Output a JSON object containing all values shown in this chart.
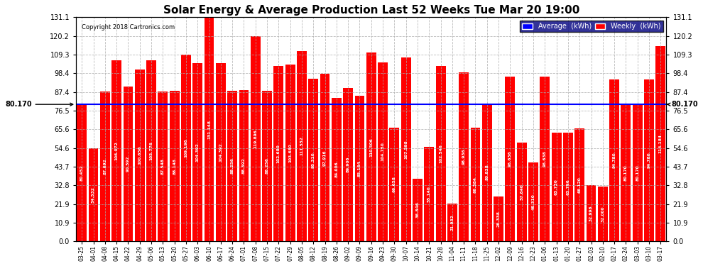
{
  "title": "Solar Energy & Average Production Last 52 Weeks Tue Mar 20 19:00",
  "copyright": "Copyright 2018 Cartronics.com",
  "average_value": 80.17,
  "average_label": "80.170",
  "bar_color": "#ff0000",
  "average_line_color": "#0000ff",
  "background_color": "#ffffff",
  "plot_bg_color": "#ffffff",
  "grid_color": "#aaaaaa",
  "ylim": [
    0,
    131.1
  ],
  "yticks": [
    0.0,
    10.9,
    21.9,
    32.8,
    43.7,
    54.6,
    65.6,
    76.5,
    87.4,
    98.4,
    109.3,
    120.2,
    131.1
  ],
  "dates": [
    "03-25",
    "04-01",
    "04-08",
    "04-15",
    "04-22",
    "04-29",
    "05-06",
    "05-13",
    "05-20",
    "05-27",
    "06-03",
    "06-10",
    "06-17",
    "06-24",
    "07-01",
    "07-08",
    "07-15",
    "07-22",
    "07-29",
    "08-05",
    "08-12",
    "08-19",
    "08-26",
    "09-02",
    "09-09",
    "09-16",
    "09-23",
    "09-30",
    "10-07",
    "10-14",
    "10-21",
    "10-28",
    "11-04",
    "11-11",
    "11-18",
    "11-25",
    "12-02",
    "12-09",
    "12-16",
    "12-23",
    "01-06",
    "01-13",
    "01-20",
    "01-27",
    "02-03",
    "02-10",
    "02-17",
    "02-24",
    "03-03",
    "03-10",
    "03-17"
  ],
  "values": [
    80.452,
    54.532,
    87.692,
    106.072,
    90.592,
    100.656,
    105.776,
    87.548,
    88.148,
    109.196,
    104.392,
    131.148,
    104.392,
    88.256,
    88.392,
    119.896,
    88.256,
    102.68,
    103.68,
    111.552,
    95.31,
    97.916,
    84.006,
    89.906,
    85.164,
    110.506,
    104.75,
    66.658,
    107.598,
    36.846,
    55.14,
    102.546,
    21.932,
    98.936,
    66.384,
    80.838,
    26.338,
    96.636,
    57.64,
    46.31,
    96.638,
    63.73,
    63.796,
    66.12,
    32.996,
    32.0,
    94.78,
    80.17,
    80.17,
    94.78,
    114.184
  ],
  "bar_values_text": [
    "80.452",
    "54.532",
    "87.692",
    "106.072",
    "90.592",
    "100.656",
    "105.776",
    "87.548",
    "88.148",
    "109.196",
    "104.392",
    "131.148",
    "104.392",
    "88.256",
    "88.392",
    "119.896",
    "88.256",
    "102.680",
    "103.680",
    "111.552",
    "95.310",
    "97.916",
    "84.006",
    "89.906",
    "85.164",
    "110.506",
    "104.750",
    "66.658",
    "107.598",
    "36.846",
    "55.140",
    "102.546",
    "21.932",
    "98.936",
    "66.384",
    "80.838",
    "26.338",
    "96.636",
    "57.640",
    "46.310",
    "96.638",
    "63.730",
    "63.796",
    "66.120",
    "32.996",
    "32.000",
    "94.780",
    "80.170",
    "80.170",
    "94.780",
    "114.184"
  ]
}
